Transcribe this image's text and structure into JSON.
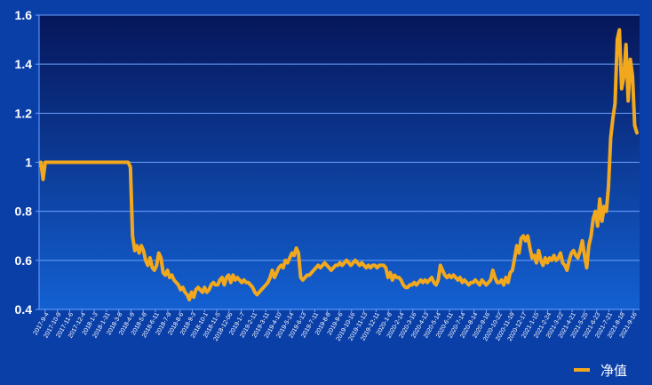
{
  "chart_data": {
    "type": "line",
    "title": "",
    "xlabel": "",
    "ylabel": "",
    "ylim": [
      0.4,
      1.6
    ],
    "y_ticks": [
      0.4,
      0.6,
      0.8,
      1,
      1.2,
      1.4,
      1.6
    ],
    "y_tick_labels": [
      "0.4",
      "0.6",
      "0.8",
      "1",
      "1.2",
      "1.4",
      "1.6"
    ],
    "grid": true,
    "legend_position": "bottom-right",
    "colors": {
      "background": "#0a3fa8",
      "plot_top": "#06165a",
      "plot_bottom": "#1360d2",
      "gridline": "#6aa3ff",
      "line": "#f2a81d",
      "text": "#ffffff"
    },
    "x_tick_labels": [
      "2017-9-4",
      "2017-10-9",
      "2017-11-6",
      "2017-12-4",
      "2018-1-3",
      "2018-1-31",
      "2018-3-8",
      "2018-4-9",
      "2018-5-8",
      "2018-6-11",
      "2018-7-9",
      "2018-8-6",
      "2018-9-3",
      "2018-10-1",
      "2018-11-5",
      "2018-12-06",
      "2019-1-7",
      "2019-2-11",
      "2019-3-11",
      "2019-4-10",
      "2019-5-14",
      "2019-6-13",
      "2019-7-11",
      "2019-8-8",
      "2019-9-6",
      "2019-10-16",
      "2019-11-13",
      "2019-12-11",
      "2020-1-8",
      "2020-2-14",
      "2020-3-16",
      "2020-4-13",
      "2020-5-14",
      "2020-6-11",
      "2020-7-14",
      "2020-8-14",
      "2020-9-16",
      "2020-10-22",
      "2020-11-19",
      "2020-12-17",
      "2021-1-15",
      "2021-2-24",
      "2021-3-22",
      "2021-4-21",
      "2021-5-25",
      "2021-6-23",
      "2021-7-21",
      "2021-8-18",
      "2021-9-16"
    ],
    "series": [
      {
        "name": "净值",
        "values": [
          1.0,
          0.93,
          1.0,
          1.0,
          1.0,
          1.0,
          1.0,
          1.0,
          1.0,
          1.0,
          1.0,
          1.0,
          1.0,
          1.0,
          1.0,
          1.0,
          1.0,
          1.0,
          1.0,
          1.0,
          1.0,
          1.0,
          1.0,
          1.0,
          1.0,
          1.0,
          1.0,
          1.0,
          1.0,
          1.0,
          1.0,
          1.0,
          1.0,
          1.0,
          1.0,
          1.0,
          1.0,
          1.0,
          1.0,
          1.0,
          1.0,
          0.98,
          0.7,
          0.64,
          0.66,
          0.63,
          0.66,
          0.64,
          0.6,
          0.58,
          0.61,
          0.57,
          0.56,
          0.58,
          0.63,
          0.61,
          0.55,
          0.54,
          0.56,
          0.53,
          0.54,
          0.52,
          0.51,
          0.5,
          0.48,
          0.49,
          0.47,
          0.46,
          0.44,
          0.47,
          0.45,
          0.48,
          0.49,
          0.48,
          0.47,
          0.49,
          0.47,
          0.48,
          0.5,
          0.51,
          0.5,
          0.5,
          0.52,
          0.53,
          0.5,
          0.53,
          0.54,
          0.51,
          0.54,
          0.52,
          0.53,
          0.52,
          0.51,
          0.52,
          0.51,
          0.51,
          0.5,
          0.49,
          0.47,
          0.46,
          0.47,
          0.48,
          0.49,
          0.5,
          0.51,
          0.53,
          0.56,
          0.53,
          0.55,
          0.57,
          0.58,
          0.57,
          0.6,
          0.59,
          0.61,
          0.63,
          0.62,
          0.65,
          0.63,
          0.53,
          0.52,
          0.53,
          0.54,
          0.54,
          0.55,
          0.56,
          0.57,
          0.58,
          0.57,
          0.58,
          0.59,
          0.58,
          0.57,
          0.56,
          0.57,
          0.58,
          0.58,
          0.59,
          0.58,
          0.59,
          0.6,
          0.59,
          0.58,
          0.59,
          0.6,
          0.59,
          0.58,
          0.59,
          0.58,
          0.57,
          0.58,
          0.57,
          0.58,
          0.58,
          0.57,
          0.58,
          0.58,
          0.58,
          0.57,
          0.53,
          0.55,
          0.52,
          0.54,
          0.53,
          0.53,
          0.52,
          0.5,
          0.49,
          0.49,
          0.5,
          0.5,
          0.51,
          0.5,
          0.51,
          0.52,
          0.51,
          0.52,
          0.51,
          0.52,
          0.53,
          0.51,
          0.5,
          0.52,
          0.58,
          0.56,
          0.54,
          0.53,
          0.54,
          0.53,
          0.54,
          0.53,
          0.52,
          0.53,
          0.51,
          0.52,
          0.51,
          0.5,
          0.51,
          0.51,
          0.52,
          0.51,
          0.5,
          0.52,
          0.51,
          0.5,
          0.51,
          0.52,
          0.56,
          0.53,
          0.51,
          0.51,
          0.52,
          0.5,
          0.53,
          0.51,
          0.55,
          0.56,
          0.61,
          0.66,
          0.63,
          0.69,
          0.7,
          0.68,
          0.7,
          0.65,
          0.61,
          0.62,
          0.59,
          0.64,
          0.6,
          0.58,
          0.61,
          0.59,
          0.61,
          0.6,
          0.62,
          0.6,
          0.61,
          0.63,
          0.59,
          0.58,
          0.56,
          0.6,
          0.63,
          0.64,
          0.62,
          0.61,
          0.64,
          0.68,
          0.62,
          0.57,
          0.66,
          0.7,
          0.77,
          0.8,
          0.74,
          0.85,
          0.76,
          0.82,
          0.8,
          0.9,
          1.1,
          1.18,
          1.24,
          1.5,
          1.54,
          1.3,
          1.35,
          1.48,
          1.25,
          1.42,
          1.35,
          1.15,
          1.12
        ]
      }
    ]
  }
}
